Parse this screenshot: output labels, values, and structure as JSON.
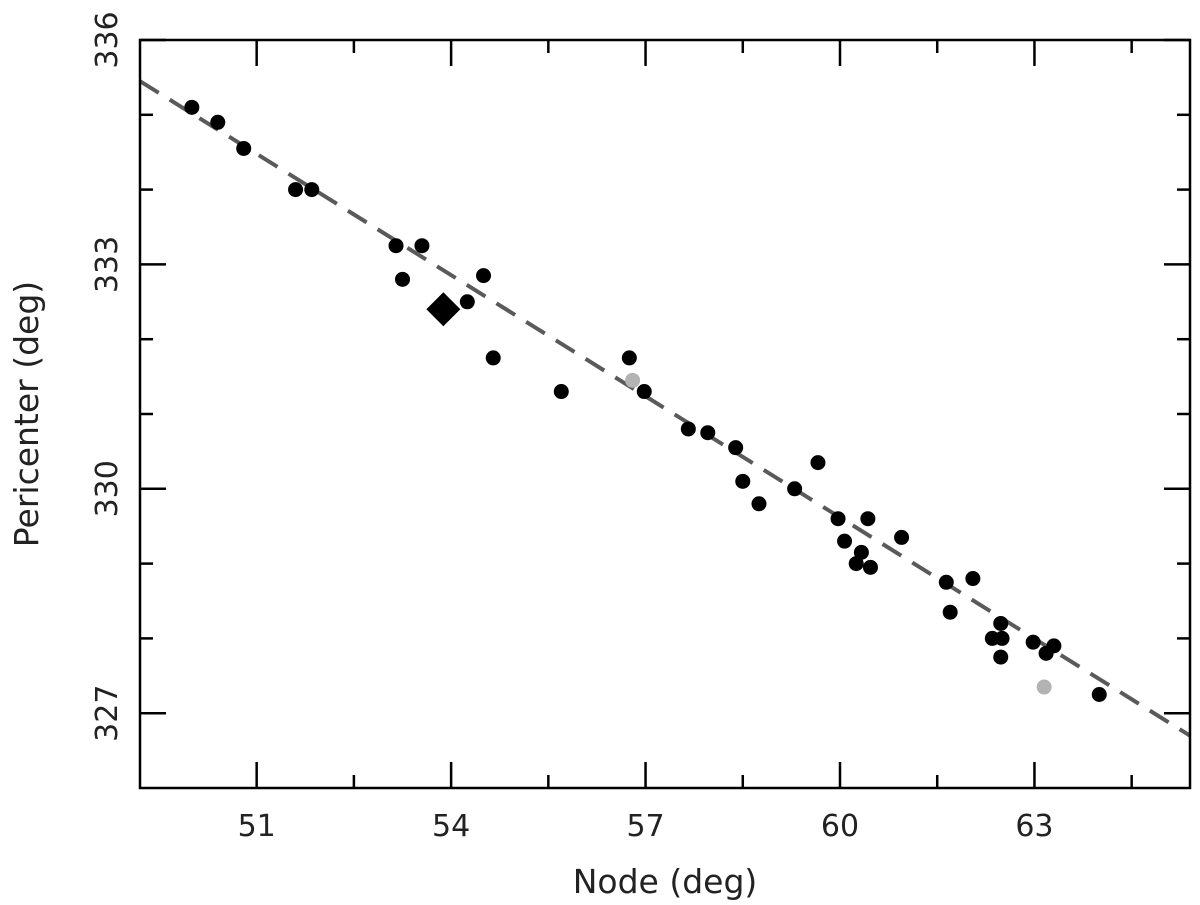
{
  "chart_data": {
    "type": "scatter",
    "title": "",
    "xlabel": "Node (deg)",
    "ylabel": "Pericenter (deg)",
    "xlim": [
      49.2,
      65.4
    ],
    "ylim": [
      326.0,
      336.0
    ],
    "xticks_major": [
      51,
      54,
      57,
      60,
      63
    ],
    "xticks_minor": [
      52.5,
      55.5,
      58.5,
      61.5,
      64.5
    ],
    "yticks_major": [
      327,
      330,
      333,
      336
    ],
    "yticks_minor": [
      328,
      329,
      331,
      332,
      334,
      335
    ],
    "grid": false,
    "legend": "none",
    "colors": {
      "black_points": "#000000",
      "gray_points": "#b3b3b3",
      "fit_line": "#5a5a5a"
    },
    "series": [
      {
        "marker": "circle-black",
        "x": [
          50.0,
          50.4,
          50.8,
          51.6,
          51.85,
          53.15,
          53.25,
          53.55,
          54.25,
          54.5,
          54.65,
          55.7,
          56.75,
          56.98,
          57.66,
          57.96,
          58.39,
          58.5,
          58.75,
          59.3,
          59.66,
          59.97,
          60.07,
          60.25,
          60.33,
          60.43,
          60.47,
          60.95,
          61.64,
          61.7,
          62.05,
          62.35,
          62.48,
          62.5,
          62.48,
          62.98,
          63.18,
          63.3,
          64.0
        ],
        "y": [
          335.1,
          334.9,
          334.55,
          334.0,
          334.0,
          333.25,
          332.8,
          333.25,
          332.5,
          332.85,
          331.75,
          331.3,
          331.75,
          331.3,
          330.8,
          330.75,
          330.55,
          330.1,
          329.8,
          330.0,
          330.35,
          329.6,
          329.3,
          329.0,
          329.15,
          329.6,
          328.95,
          329.35,
          328.75,
          328.35,
          328.8,
          328.0,
          328.2,
          328.0,
          327.75,
          327.95,
          327.8,
          327.9,
          327.25
        ]
      },
      {
        "marker": "circle-gray",
        "x": [
          56.8,
          63.15
        ],
        "y": [
          331.45,
          327.35
        ]
      },
      {
        "marker": "diamond-black",
        "x": [
          53.88
        ],
        "y": [
          332.4
        ]
      }
    ],
    "fit_line": {
      "style": "dashed",
      "x": [
        49.2,
        65.4
      ],
      "y": [
        335.45,
        326.7
      ]
    }
  }
}
